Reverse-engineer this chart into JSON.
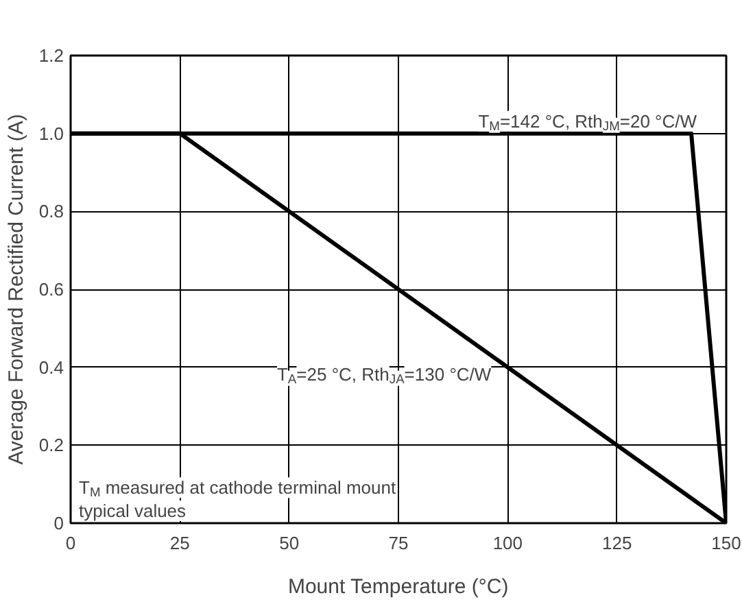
{
  "chart_data": {
    "type": "line",
    "xlabel": "Mount Temperature (°C)",
    "ylabel": "Average Forward Rectified Current (A)",
    "series": [
      {
        "name": "T$_{M}$=142 °C, Rth$_{JM}$=20 °C/W",
        "color": "#000000",
        "x": [
          0,
          142,
          150
        ],
        "values": [
          1.0,
          1.0,
          0
        ]
      },
      {
        "name": "T$_{A}$=25 °C, Rth$_{JA}$=130 °C/W",
        "color": "#000000",
        "x": [
          0,
          25,
          150
        ],
        "values": [
          1.0,
          1.0,
          0
        ]
      }
    ],
    "annotations": [
      "T$_{M}$ measured at cathode terminal mount\ntypical values"
    ],
    "xlim": [
      0,
      150
    ],
    "ylim": [
      0,
      1.2
    ],
    "xticks": [
      0,
      25,
      50,
      75,
      100,
      125,
      150
    ],
    "yticks": [
      0,
      {
        "value": 0.2,
        "label": "0.2"
      },
      {
        "value": 0.4,
        "label": "0.4"
      },
      {
        "value": 0.6,
        "label": "0.6"
      },
      {
        "value": 0.8,
        "label": "0.8"
      },
      {
        "value": 1.0,
        "label": "1.0"
      },
      {
        "value": 1.2,
        "label": "1.2"
      }
    ],
    "grid": true,
    "marker": "none",
    "line_style": "solid"
  }
}
